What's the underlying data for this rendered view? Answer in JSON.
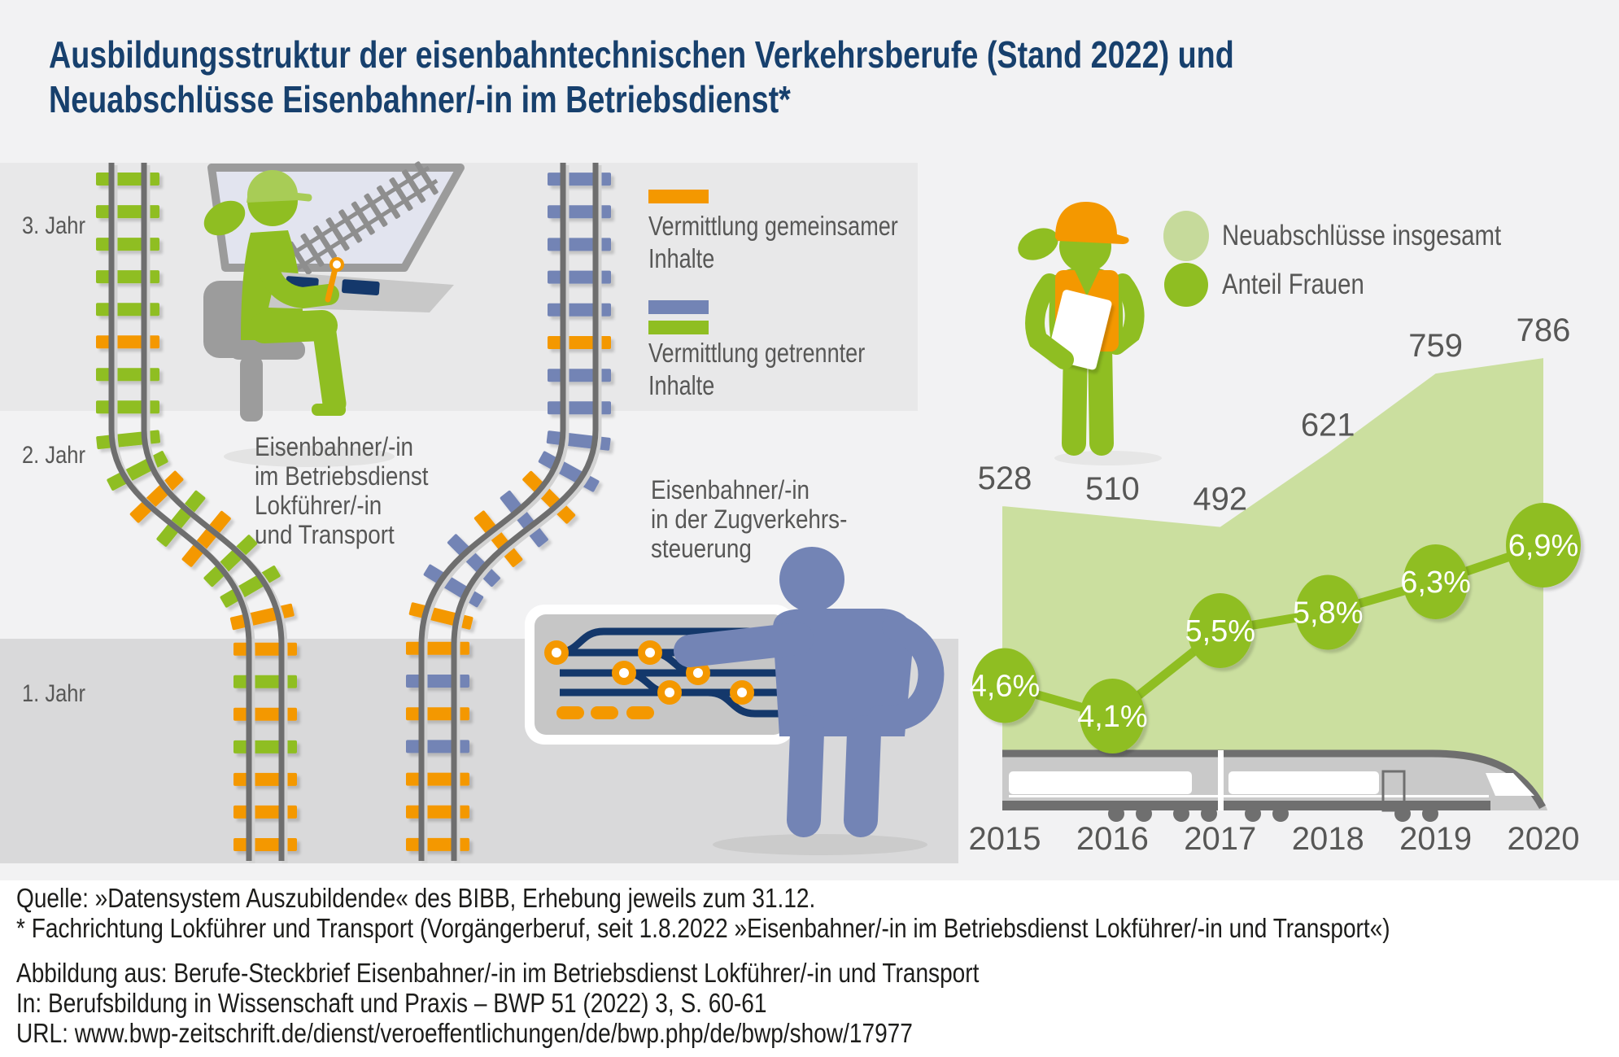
{
  "title": {
    "line1": "Ausbildungsstruktur der eisenbahntechnischen Verkehrsberufe (Stand 2022) und",
    "line2": "Neuabschlüsse Eisenbahner/-in im Betriebsdienst*"
  },
  "jahr_labels": [
    "3. Jahr",
    "2. Jahr",
    "1. Jahr"
  ],
  "track_legend": {
    "common": {
      "label_line1": "Vermittlung gemeinsamer",
      "label_line2": "Inhalte"
    },
    "separate": {
      "label_line1": "Vermittlung getrennter",
      "label_line2": "Inhalte"
    }
  },
  "captions": {
    "left": [
      "Eisenbahner/-in",
      "im Betriebsdienst",
      "Lokführer/-in",
      "und Transport"
    ],
    "right": [
      "Eisenbahner/-in",
      "in der Zugverkehrs-",
      "steuerung"
    ]
  },
  "chart_data": {
    "type": "area+line",
    "categories": [
      "2015",
      "2016",
      "2017",
      "2018",
      "2019",
      "2020"
    ],
    "series": [
      {
        "name": "Neuabschlüsse insgesamt",
        "type": "area",
        "color": "#cbdf9f",
        "values": [
          528,
          510,
          492,
          621,
          759,
          786
        ],
        "labels": [
          "528",
          "510",
          "492",
          "621",
          "759",
          "786"
        ]
      },
      {
        "name": "Anteil Frauen",
        "type": "line",
        "color": "#8fbe22",
        "values_percent": [
          4.6,
          4.1,
          5.5,
          5.8,
          6.3,
          6.9
        ],
        "labels": [
          "4,6%",
          "4,1%",
          "5,5%",
          "5,8%",
          "6,3%",
          "6,9%"
        ]
      }
    ],
    "legend": [
      {
        "label": "Neuabschlüsse insgesamt",
        "color": "#c6da9b"
      },
      {
        "label": "Anteil Frauen",
        "color": "#8fbe22"
      }
    ],
    "legend_position": "top-right",
    "grid": false,
    "ylim": [
      0,
      800
    ]
  },
  "icons": {
    "train_driver_scene": "green pictogram person with cap sitting at driving desk with monitor showing tracks",
    "traffic_controller_scene": "blue pictogram person at signal control panel with track diagram and orange signals",
    "apprentice_figure": "green pictogram person with orange hard hat, safety vest and clipboard",
    "train": "gray ICE-style train silhouette",
    "tracks": "two railway tracks with colored sleepers (orange = common, green/blue = separate content)"
  },
  "source": {
    "lines": [
      "Quelle: »Datensystem Auszubildende« des BIBB, Erhebung jeweils zum 31.12.",
      "* Fachrichtung Lokführer und Transport (Vorgängerberuf, seit 1.8.2022 »Eisenbahner/-in im Betriebsdienst Lokführer/-in und Transport«)",
      "Abbildung aus: Berufe-Steckbrief Eisenbahner/-in im Betriebsdienst Lokführer/-in und Transport",
      "In: Berufsbildung in Wissenschaft und Praxis – BWP 51 (2022) 3, S. 60-61",
      "URL: www.bwp-zeitschrift.de/dienst/veroeffentlichungen/de/bwp.php/de/bwp/show/17977"
    ]
  },
  "colors": {
    "orange": "#f49800",
    "green": "#8fbe22",
    "cap_green": "#a8cc56",
    "light_green_area": "#cbdf9f",
    "legend_light_green": "#c6da9b",
    "tie_blue": "#7384b5",
    "navy": "#14386b",
    "title_blue": "#17406d",
    "text_gray": "#575756",
    "rail_gray": "#6e6e6e",
    "train_gray": "#c9c9c9",
    "background": "#f2f2f3"
  }
}
